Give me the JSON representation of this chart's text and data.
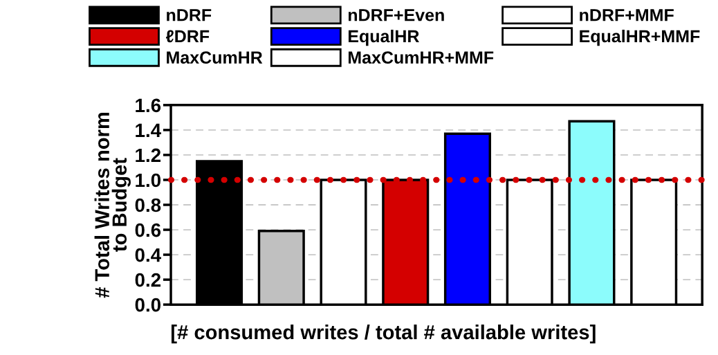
{
  "chart_data": {
    "type": "bar",
    "ylabel": "# Total Writes norm\nto Budget",
    "xlabel": "[# consumed writes / total # available writes]",
    "categories": [
      null,
      null,
      null,
      null,
      null,
      null,
      null,
      null
    ],
    "series": [
      {
        "name": "nDRF",
        "color": "#000000",
        "values": [
          1.15,
          null,
          null,
          null,
          null,
          null,
          null,
          null
        ]
      },
      {
        "name": "nDRF+Even",
        "color": "#c0c0c0",
        "values": [
          null,
          0.59,
          null,
          null,
          null,
          null,
          null,
          null
        ]
      },
      {
        "name": "nDRF+MMF",
        "color": "#ffffff",
        "values": [
          null,
          null,
          1.0,
          null,
          null,
          null,
          null,
          null
        ]
      },
      {
        "name": "ℓDRF",
        "color": "#d40000",
        "values": [
          null,
          null,
          null,
          1.0,
          null,
          null,
          null,
          null
        ]
      },
      {
        "name": "EqualHR",
        "color": "#0000ff",
        "values": [
          null,
          null,
          null,
          null,
          1.37,
          null,
          null,
          null
        ]
      },
      {
        "name": "EqualHR+MMF",
        "color": "#ffffff",
        "values": [
          null,
          null,
          null,
          null,
          null,
          1.0,
          null,
          null
        ]
      },
      {
        "name": "MaxCumHR",
        "color": "#8cfcfc",
        "values": [
          null,
          null,
          null,
          null,
          null,
          null,
          1.47,
          null
        ]
      },
      {
        "name": "MaxCumHR+MMF",
        "color": "#ffffff",
        "values": [
          null,
          null,
          null,
          null,
          null,
          null,
          null,
          1.0
        ]
      }
    ],
    "ylim": [
      0,
      1.6
    ],
    "yticks": [
      {
        "value": 0,
        "label": "0.0"
      },
      {
        "value": 0.2,
        "label": "0.2"
      },
      {
        "value": 0.4,
        "label": "0.4"
      },
      {
        "value": 0.6,
        "label": "0.6"
      },
      {
        "value": 0.8,
        "label": "0.8"
      },
      {
        "value": 1.0,
        "label": "1.0"
      },
      {
        "value": 1.2,
        "label": "1.2"
      },
      {
        "value": 1.4,
        "label": "1.4"
      },
      {
        "value": 1.6,
        "label": "1.6"
      }
    ],
    "ref_lines": [
      {
        "axis": "y",
        "value": 1.0,
        "color": "#d40000",
        "line_style": "dotted"
      }
    ],
    "grid": "y",
    "legend": "top"
  }
}
